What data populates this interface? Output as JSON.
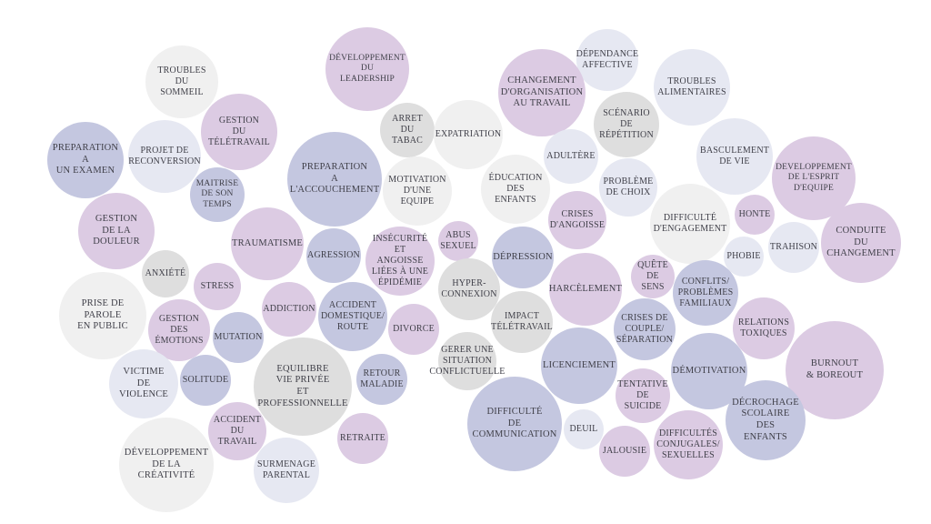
{
  "bubbles": [
    {
      "label": "Troubles du\nsommeil",
      "color": "light"
    },
    {
      "label": "Développement\ndu\nleadership",
      "color": "purple"
    },
    {
      "label": "Dépendance\naffective",
      "color": "pale"
    },
    {
      "label": "Changement\nd'organisation\nau travail",
      "color": "purple"
    },
    {
      "label": "Troubles\nalimentaires",
      "color": "pale"
    },
    {
      "label": "Gestion\ndu\ntélétravail",
      "color": "purple"
    },
    {
      "label": "Arret\ndu\ntabac",
      "color": "grey"
    },
    {
      "label": "Expatriation",
      "color": "light"
    },
    {
      "label": "Scénario\nde\nrépétition",
      "color": "grey"
    },
    {
      "label": "Preparation\na\nun examen",
      "color": "blue"
    },
    {
      "label": "Projet de\nreconversion",
      "color": "pale"
    },
    {
      "label": "Preparation\na\nl'accouchement",
      "color": "blue"
    },
    {
      "label": "Adultère",
      "color": "pale"
    },
    {
      "label": "Basculement\nde vie",
      "color": "pale"
    },
    {
      "label": "Developpement\nde l'esprit\nd'equipe",
      "color": "purple"
    },
    {
      "label": "Maitrise\nde son\ntemps",
      "color": "blue"
    },
    {
      "label": "Motivation\nd'une\nequipe",
      "color": "light"
    },
    {
      "label": "Éducation\ndes enfants",
      "color": "light"
    },
    {
      "label": "Problème\nde choix",
      "color": "pale"
    },
    {
      "label": "Gestion\nde la\ndouleur",
      "color": "purple"
    },
    {
      "label": "Crises\nd'angoisse",
      "color": "purple"
    },
    {
      "label": "Difficulté\nd'engagement",
      "color": "light"
    },
    {
      "label": "Honte",
      "color": "purple"
    },
    {
      "label": "Conduite\ndu\nchangement",
      "color": "purple"
    },
    {
      "label": "Traumatisme",
      "color": "purple"
    },
    {
      "label": "Abus\nsexuel",
      "color": "purple"
    },
    {
      "label": "Agression",
      "color": "blue"
    },
    {
      "label": "Insécurité\net angoisse\nliées à une\népidémie",
      "color": "purple"
    },
    {
      "label": "Dépression",
      "color": "blue"
    },
    {
      "label": "Trahison",
      "color": "pale"
    },
    {
      "label": "Phobie",
      "color": "pale"
    },
    {
      "label": "Anxiété",
      "color": "grey"
    },
    {
      "label": "Stress",
      "color": "purple"
    },
    {
      "label": "Hyper-\nconnexion",
      "color": "grey"
    },
    {
      "label": "Quête\nde sens",
      "color": "purple"
    },
    {
      "label": "Conflits/\nproblèmes\nfamiliaux",
      "color": "blue"
    },
    {
      "label": "Prise de parole\nen public",
      "color": "light"
    },
    {
      "label": "Addiction",
      "color": "purple"
    },
    {
      "label": "Accident\ndomestique/\nroute",
      "color": "blue"
    },
    {
      "label": "Harcèlement",
      "color": "purple"
    },
    {
      "label": "Gestion\ndes\némotions",
      "color": "purple"
    },
    {
      "label": "Impact\ntélétravail",
      "color": "grey"
    },
    {
      "label": "Crises de\ncouple/\nséparation",
      "color": "blue"
    },
    {
      "label": "Relations\ntoxiques",
      "color": "purple"
    },
    {
      "label": "Mutation",
      "color": "blue"
    },
    {
      "label": "Divorce",
      "color": "purple"
    },
    {
      "label": "Gerer une\nsituation\nconflictuelle",
      "color": "grey"
    },
    {
      "label": "Burnout\n& boreout",
      "color": "purple"
    },
    {
      "label": "Equilibre\nvie privée\net\nprofessionnelle",
      "color": "grey"
    },
    {
      "label": "Retour\nmaladie",
      "color": "blue"
    },
    {
      "label": "Licenciement",
      "color": "blue"
    },
    {
      "label": "Démotivation",
      "color": "blue"
    },
    {
      "label": "Victime\nde violence",
      "color": "pale"
    },
    {
      "label": "Solitude",
      "color": "blue"
    },
    {
      "label": "Tentative\nde suicide",
      "color": "purple"
    },
    {
      "label": "Décrochage\nscolaire des\nenfants",
      "color": "blue"
    },
    {
      "label": "Difficulté\nde\ncommunication",
      "color": "blue"
    },
    {
      "label": "Accident\ndu travail",
      "color": "purple"
    },
    {
      "label": "Retraite",
      "color": "purple"
    },
    {
      "label": "Deuil",
      "color": "pale"
    },
    {
      "label": "Difficultés\nconjugales/\nsexuelles",
      "color": "purple"
    },
    {
      "label": "Jalousie",
      "color": "purple"
    },
    {
      "label": "Développement\nde la créativité",
      "color": "light"
    },
    {
      "label": "Surmenage\nparental",
      "color": "pale"
    }
  ]
}
